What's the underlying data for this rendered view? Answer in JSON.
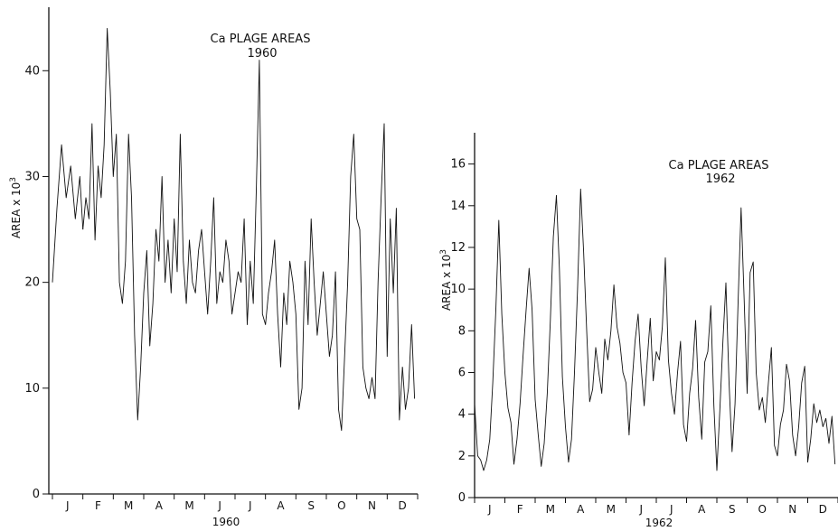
{
  "chart_data": [
    {
      "type": "line",
      "title": "Ca PLAGE AREAS",
      "subtitle": "1960",
      "xlabel": "1960",
      "ylabel": "AREA x 10",
      "ylabel_sup": "3",
      "ylim": [
        0,
        46
      ],
      "yticks": [
        0,
        10,
        20,
        30,
        40
      ],
      "months": [
        "J",
        "F",
        "M",
        "A",
        "M",
        "J",
        "J",
        "A",
        "S",
        "O",
        "N",
        "D"
      ],
      "grid": false,
      "series": [
        {
          "x": [
            0,
            0.15,
            0.3,
            0.45,
            0.6,
            0.75,
            0.9,
            1.0
          ],
          "values": [
            20,
            27,
            33,
            28,
            31,
            26,
            30,
            25
          ]
        },
        {
          "x": [
            1.0,
            1.1,
            1.2,
            1.3,
            1.4,
            1.5,
            1.6,
            1.7,
            1.8,
            1.9,
            2.0,
            2.1,
            2.2,
            2.3,
            2.4,
            2.5,
            2.6,
            2.7,
            2.8,
            2.9,
            3.0,
            3.1,
            3.2,
            3.3,
            3.4,
            3.5,
            3.6,
            3.7,
            3.8,
            3.9,
            4.0,
            4.1,
            4.2,
            4.3,
            4.4,
            4.5,
            4.6,
            4.7,
            4.8,
            4.9,
            5.0,
            5.1,
            5.2,
            5.3,
            5.4,
            5.5,
            5.6,
            5.7,
            5.8,
            5.9,
            6.0,
            6.1,
            6.2,
            6.3,
            6.4,
            6.5,
            6.6,
            6.7,
            6.8,
            6.9,
            7.0,
            7.1,
            7.2,
            7.3,
            7.4,
            7.5,
            7.6,
            7.7,
            7.8,
            7.9,
            8.0,
            8.1,
            8.2,
            8.3,
            8.4,
            8.5,
            8.6,
            8.7,
            8.8,
            8.9,
            9.0,
            9.1,
            9.2,
            9.3,
            9.4,
            9.5,
            9.6,
            9.7,
            9.8,
            9.9,
            10.0,
            10.1,
            10.2,
            10.3,
            10.4,
            10.5,
            10.6,
            10.7,
            10.8,
            10.9,
            11.0,
            11.1,
            11.2,
            11.3,
            11.4,
            11.5
          ],
          "values": [
            25,
            28,
            26,
            35,
            24,
            31,
            28,
            33,
            44,
            38,
            30,
            34,
            20,
            18,
            22,
            34,
            28,
            15,
            7,
            12,
            19,
            23,
            14,
            18,
            25,
            22,
            30,
            20,
            24,
            19,
            26,
            21,
            34,
            22,
            18,
            24,
            20,
            19,
            23,
            25,
            21,
            17,
            22,
            28,
            18,
            21,
            20,
            24,
            22,
            17,
            19,
            21,
            20,
            26,
            16,
            22,
            18,
            29,
            41,
            17,
            16,
            19,
            21,
            24,
            17,
            12,
            19,
            16,
            22,
            20,
            17,
            8,
            10,
            22,
            16,
            26,
            20,
            15,
            18,
            21,
            17,
            13,
            15,
            21,
            8,
            6,
            13,
            20,
            30,
            34,
            26,
            25,
            12,
            10,
            9,
            11,
            9,
            20,
            28,
            35,
            13,
            26,
            19,
            27,
            7,
            12
          ]
        },
        {
          "x": [
            11.5,
            11.6,
            11.7,
            11.8,
            11.9
          ],
          "values": [
            12,
            8,
            10,
            16,
            9
          ]
        }
      ]
    },
    {
      "type": "line",
      "title": "Ca PLAGE AREAS",
      "subtitle": "1962",
      "xlabel": "1962",
      "ylabel": "AREA x 10",
      "ylabel_sup": "3",
      "ylim": [
        0,
        17.5
      ],
      "yticks": [
        0,
        2,
        4,
        6,
        8,
        10,
        12,
        14,
        16
      ],
      "months": [
        "J",
        "F",
        "M",
        "A",
        "M",
        "J",
        "J",
        "A",
        "S",
        "O",
        "N",
        "D"
      ],
      "grid": false,
      "series": [
        {
          "x": [
            0,
            0.1,
            0.2,
            0.3,
            0.4,
            0.5,
            0.6,
            0.7,
            0.8,
            0.9,
            1.0,
            1.1,
            1.2,
            1.3,
            1.4,
            1.5,
            1.6,
            1.7,
            1.8,
            1.9,
            2.0,
            2.1,
            2.2,
            2.3,
            2.4,
            2.5,
            2.6,
            2.7,
            2.8,
            2.9,
            3.0,
            3.1,
            3.2,
            3.3,
            3.4,
            3.5,
            3.6,
            3.7,
            3.8,
            3.9,
            4.0,
            4.1,
            4.2,
            4.3,
            4.4,
            4.5,
            4.6,
            4.7,
            4.8,
            4.9,
            5.0,
            5.1,
            5.2,
            5.3,
            5.4,
            5.5,
            5.6,
            5.7,
            5.8,
            5.9,
            6.0,
            6.1,
            6.2,
            6.3,
            6.4,
            6.5,
            6.6,
            6.7,
            6.8,
            6.9,
            7.0,
            7.1,
            7.2,
            7.3,
            7.4,
            7.5,
            7.6,
            7.7,
            7.8,
            7.9,
            8.0,
            8.1,
            8.2,
            8.3,
            8.4,
            8.5,
            8.6,
            8.7,
            8.8,
            8.9,
            9.0,
            9.1,
            9.2,
            9.3,
            9.4,
            9.5,
            9.6,
            9.7,
            9.8,
            9.9,
            10.0,
            10.1,
            10.2,
            10.3,
            10.4,
            10.5,
            10.6,
            10.7,
            10.8,
            10.9,
            11.0,
            11.1,
            11.2,
            11.3,
            11.4,
            11.5,
            11.6,
            11.7,
            11.8,
            11.9
          ],
          "values": [
            4.5,
            2.0,
            1.8,
            1.3,
            1.8,
            2.8,
            5.5,
            9.0,
            13.3,
            8.8,
            6.0,
            4.3,
            3.6,
            1.6,
            2.8,
            4.5,
            6.8,
            9.0,
            11.0,
            9.0,
            4.7,
            3.0,
            1.5,
            2.6,
            5.0,
            8.5,
            12.5,
            14.5,
            11.0,
            5.8,
            3.4,
            1.7,
            2.8,
            6.0,
            10.0,
            14.8,
            11.8,
            8.0,
            4.6,
            5.2,
            7.2,
            6.0,
            5.0,
            7.6,
            6.6,
            8.0,
            10.2,
            8.2,
            7.4,
            6.0,
            5.5,
            3.0,
            5.5,
            7.5,
            8.8,
            6.2,
            4.4,
            6.6,
            8.6,
            5.6,
            7.0,
            6.6,
            8.2,
            11.5,
            6.6,
            5.0,
            4.0,
            6.0,
            7.5,
            3.5,
            2.7,
            5.0,
            6.2,
            8.5,
            4.8,
            2.8,
            6.5,
            7.0,
            9.2,
            4.4,
            1.3,
            4.2,
            7.5,
            10.3,
            5.6,
            2.2,
            4.5,
            9.4,
            13.9,
            9.5,
            5.0,
            10.8,
            11.3,
            6.0,
            4.2,
            4.8,
            3.6,
            5.5,
            7.2,
            2.5,
            2.0,
            3.5,
            4.2,
            6.4,
            5.6,
            3.0,
            2.0,
            3.4,
            5.5,
            6.3,
            1.7,
            2.8,
            4.5,
            3.6,
            4.2,
            3.4,
            3.8,
            2.6,
            3.9,
            1.6
          ]
        }
      ]
    }
  ]
}
